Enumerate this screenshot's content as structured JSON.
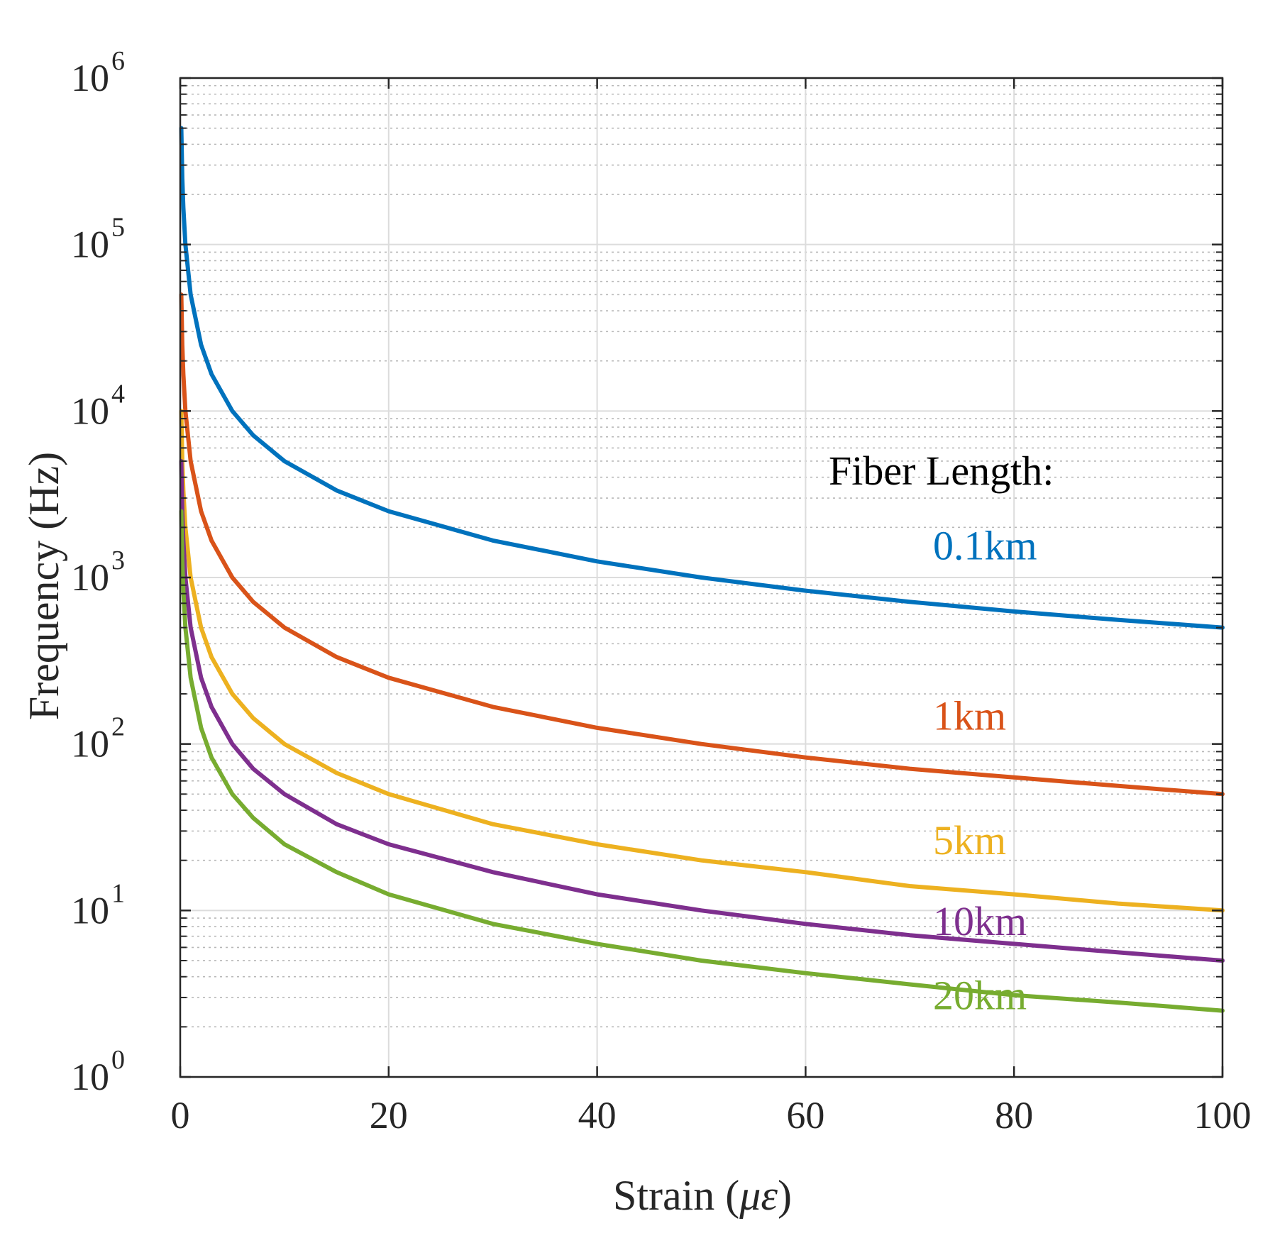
{
  "chart_data": {
    "type": "line",
    "title": "",
    "xlabel": "Strain (",
    "xlabel_symbol": "με",
    "xlabel_close": ")",
    "ylabel": "Frequency (Hz)",
    "x_scale": "linear",
    "y_scale": "log",
    "xlim": [
      0,
      100
    ],
    "ylim": [
      1,
      1000000
    ],
    "grid": true,
    "xticks": [
      0,
      20,
      40,
      60,
      80,
      100
    ],
    "xtick_labels": [
      "0",
      "20",
      "40",
      "60",
      "80",
      "100"
    ],
    "yticks": [
      1,
      10,
      100,
      1000,
      10000,
      100000,
      1000000
    ],
    "ytick_labels": [
      {
        "base": "10",
        "exp": "0"
      },
      {
        "base": "10",
        "exp": "1"
      },
      {
        "base": "10",
        "exp": "2"
      },
      {
        "base": "10",
        "exp": "3"
      },
      {
        "base": "10",
        "exp": "4"
      },
      {
        "base": "10",
        "exp": "5"
      },
      {
        "base": "10",
        "exp": "6"
      }
    ],
    "annotation_title": "Fiber Length:",
    "x": [
      0.1,
      0.2,
      0.3,
      0.5,
      1,
      2,
      3,
      5,
      7,
      10,
      15,
      20,
      30,
      40,
      50,
      60,
      70,
      80,
      90,
      100
    ],
    "series": [
      {
        "name": "0.1km",
        "color": "#0072BD",
        "values": [
          500000,
          250000,
          166667,
          100000,
          50000,
          25000,
          16667,
          10000,
          7143,
          5000,
          3333,
          2500,
          1667,
          1250,
          1000,
          833,
          714,
          625,
          556,
          500
        ]
      },
      {
        "name": "1km",
        "color": "#D95319",
        "values": [
          50000,
          25000,
          16667,
          10000,
          5000,
          2500,
          1667,
          1000,
          714,
          500,
          333,
          250,
          167,
          125,
          100,
          83,
          71,
          63,
          56,
          50
        ]
      },
      {
        "name": "5km",
        "color": "#EDB120",
        "values": [
          10000,
          5000,
          3333,
          2000,
          1000,
          500,
          333,
          200,
          143,
          100,
          67,
          50,
          33,
          25,
          20,
          17,
          14,
          12.5,
          11,
          10
        ]
      },
      {
        "name": "10km",
        "color": "#7E2F8E",
        "values": [
          5000,
          2500,
          1667,
          1000,
          500,
          250,
          167,
          100,
          71,
          50,
          33,
          25,
          17,
          12.5,
          10,
          8.3,
          7.1,
          6.3,
          5.6,
          5
        ]
      },
      {
        "name": "20km",
        "color": "#77AC30",
        "values": [
          2500,
          1250,
          833,
          500,
          250,
          125,
          83,
          50,
          36,
          25,
          17,
          12.5,
          8.3,
          6.3,
          5,
          4.2,
          3.6,
          3.1,
          2.8,
          2.5
        ]
      }
    ]
  }
}
